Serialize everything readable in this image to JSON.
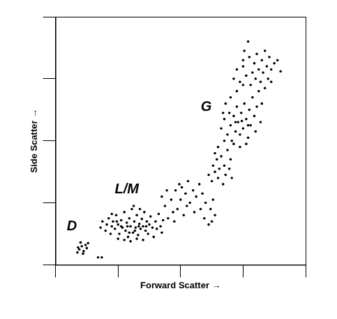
{
  "chart_data": {
    "type": "scatter",
    "x_label": "Forward Scatter →",
    "y_label": "Side Scatter →",
    "xlim": [
      0,
      4
    ],
    "xticks": [
      0,
      1,
      2,
      3,
      4
    ],
    "ylim": [
      0,
      4
    ],
    "yticks": [
      0,
      1,
      2,
      3,
      4
    ],
    "grid": false,
    "tick_labels": false,
    "color": "#000000",
    "marker": "circle",
    "annotations": [
      {
        "text": "D",
        "x": 0.26,
        "y": 0.62
      },
      {
        "text": "L/M",
        "x": 1.14,
        "y": 1.21
      },
      {
        "text": "G",
        "x": 2.41,
        "y": 2.54
      }
    ],
    "points": [
      [
        0.38,
        0.25
      ],
      [
        0.42,
        0.3
      ],
      [
        0.45,
        0.22
      ],
      [
        0.35,
        0.2
      ],
      [
        0.48,
        0.32
      ],
      [
        0.4,
        0.36
      ],
      [
        0.5,
        0.27
      ],
      [
        0.44,
        0.18
      ],
      [
        0.36,
        0.28
      ],
      [
        0.52,
        0.35
      ],
      [
        0.68,
        0.12
      ],
      [
        0.74,
        0.12
      ],
      [
        0.72,
        0.6
      ],
      [
        0.75,
        0.7
      ],
      [
        0.8,
        0.55
      ],
      [
        0.82,
        0.65
      ],
      [
        0.85,
        0.75
      ],
      [
        0.88,
        0.5
      ],
      [
        0.9,
        0.62
      ],
      [
        0.92,
        0.7
      ],
      [
        0.95,
        0.58
      ],
      [
        0.97,
        0.8
      ],
      [
        1.0,
        0.65
      ],
      [
        1.02,
        0.5
      ],
      [
        1.05,
        0.72
      ],
      [
        1.07,
        0.6
      ],
      [
        1.1,
        0.85
      ],
      [
        1.12,
        0.55
      ],
      [
        1.14,
        0.68
      ],
      [
        1.16,
        0.45
      ],
      [
        1.18,
        0.75
      ],
      [
        1.2,
        0.62
      ],
      [
        1.22,
        0.9
      ],
      [
        1.24,
        0.52
      ],
      [
        1.26,
        0.7
      ],
      [
        1.28,
        0.6
      ],
      [
        1.3,
        0.8
      ],
      [
        1.32,
        0.48
      ],
      [
        1.34,
        0.66
      ],
      [
        1.36,
        0.58
      ],
      [
        1.38,
        0.74
      ],
      [
        1.4,
        0.62
      ],
      [
        1.42,
        0.85
      ],
      [
        1.44,
        0.55
      ],
      [
        1.46,
        0.7
      ],
      [
        1.48,
        0.5
      ],
      [
        1.5,
        0.65
      ],
      [
        1.52,
        0.78
      ],
      [
        1.55,
        0.6
      ],
      [
        1.57,
        0.45
      ],
      [
        1.6,
        0.7
      ],
      [
        1.62,
        0.58
      ],
      [
        1.65,
        0.82
      ],
      [
        1.68,
        0.62
      ],
      [
        1.7,
        0.52
      ],
      [
        1.72,
        0.72
      ],
      [
        1.75,
        0.95
      ],
      [
        1.0,
        0.42
      ],
      [
        1.1,
        0.4
      ],
      [
        1.2,
        0.38
      ],
      [
        1.3,
        0.42
      ],
      [
        1.4,
        0.4
      ],
      [
        0.9,
        0.82
      ],
      [
        1.25,
        0.95
      ],
      [
        1.35,
        0.9
      ],
      [
        1.15,
        0.62
      ],
      [
        1.05,
        0.62
      ],
      [
        1.33,
        0.62
      ],
      [
        1.45,
        0.62
      ],
      [
        0.98,
        0.7
      ],
      [
        1.27,
        0.55
      ],
      [
        1.18,
        0.52
      ],
      [
        1.8,
        0.75
      ],
      [
        1.85,
        1.05
      ],
      [
        1.88,
        0.85
      ],
      [
        1.92,
        1.2
      ],
      [
        1.95,
        0.9
      ],
      [
        1.98,
        1.3
      ],
      [
        2.0,
        1.05
      ],
      [
        2.05,
        0.8
      ],
      [
        2.08,
        1.15
      ],
      [
        2.1,
        0.95
      ],
      [
        2.12,
        1.35
      ],
      [
        2.15,
        1.0
      ],
      [
        2.2,
        1.2
      ],
      [
        2.22,
        0.85
      ],
      [
        2.25,
        1.1
      ],
      [
        2.3,
        1.3
      ],
      [
        2.32,
        0.9
      ],
      [
        2.35,
        1.15
      ],
      [
        2.38,
        0.75
      ],
      [
        2.4,
        1.0
      ],
      [
        2.45,
        0.65
      ],
      [
        2.48,
        0.9
      ],
      [
        2.5,
        0.7
      ],
      [
        2.52,
        1.05
      ],
      [
        2.55,
        0.8
      ],
      [
        1.7,
        1.1
      ],
      [
        1.78,
        1.2
      ],
      [
        1.9,
        0.7
      ],
      [
        2.02,
        1.25
      ],
      [
        2.45,
        1.45
      ],
      [
        2.5,
        1.35
      ],
      [
        2.52,
        1.6
      ],
      [
        2.55,
        1.5
      ],
      [
        2.58,
        1.7
      ],
      [
        2.6,
        1.4
      ],
      [
        2.62,
        1.55
      ],
      [
        2.65,
        1.75
      ],
      [
        2.68,
        1.3
      ],
      [
        2.7,
        1.6
      ],
      [
        2.72,
        1.45
      ],
      [
        2.75,
        1.85
      ],
      [
        2.78,
        1.55
      ],
      [
        2.8,
        1.7
      ],
      [
        2.82,
        1.4
      ],
      [
        2.6,
        1.9
      ],
      [
        2.7,
        2.0
      ],
      [
        2.55,
        1.8
      ],
      [
        2.65,
        2.2
      ],
      [
        2.7,
        2.35
      ],
      [
        2.75,
        2.1
      ],
      [
        2.78,
        2.45
      ],
      [
        2.8,
        2.25
      ],
      [
        2.82,
        2.0
      ],
      [
        2.85,
        2.4
      ],
      [
        2.88,
        2.15
      ],
      [
        2.9,
        2.55
      ],
      [
        2.92,
        2.3
      ],
      [
        2.95,
        2.1
      ],
      [
        2.97,
        2.45
      ],
      [
        3.0,
        2.2
      ],
      [
        3.02,
        2.6
      ],
      [
        3.05,
        2.35
      ],
      [
        3.08,
        2.05
      ],
      [
        3.1,
        2.5
      ],
      [
        3.12,
        2.25
      ],
      [
        3.15,
        2.7
      ],
      [
        3.18,
        2.4
      ],
      [
        3.2,
        2.15
      ],
      [
        3.22,
        2.55
      ],
      [
        3.25,
        2.8
      ],
      [
        3.28,
        2.3
      ],
      [
        3.3,
        2.6
      ],
      [
        2.85,
        1.95
      ],
      [
        2.95,
        1.9
      ],
      [
        3.05,
        1.95
      ],
      [
        2.72,
        2.6
      ],
      [
        2.8,
        2.7
      ],
      [
        2.9,
        2.8
      ],
      [
        3.0,
        2.9
      ],
      [
        2.68,
        2.45
      ],
      [
        2.88,
        2.3
      ],
      [
        2.98,
        2.32
      ],
      [
        3.08,
        2.25
      ],
      [
        2.85,
        3.0
      ],
      [
        2.9,
        3.15
      ],
      [
        2.95,
        2.95
      ],
      [
        3.0,
        3.2
      ],
      [
        3.05,
        3.05
      ],
      [
        3.1,
        3.35
      ],
      [
        3.12,
        2.9
      ],
      [
        3.15,
        3.1
      ],
      [
        3.18,
        3.25
      ],
      [
        3.2,
        3.0
      ],
      [
        3.22,
        3.4
      ],
      [
        3.25,
        3.15
      ],
      [
        3.28,
        2.95
      ],
      [
        3.3,
        3.3
      ],
      [
        3.32,
        3.1
      ],
      [
        3.35,
        3.45
      ],
      [
        3.38,
        3.2
      ],
      [
        3.4,
        3.0
      ],
      [
        3.42,
        3.35
      ],
      [
        3.45,
        3.15
      ],
      [
        3.5,
        3.25
      ],
      [
        3.55,
        3.3
      ],
      [
        3.6,
        3.12
      ],
      [
        3.35,
        2.85
      ],
      [
        3.45,
        2.95
      ],
      [
        3.02,
        3.45
      ],
      [
        3.08,
        3.6
      ],
      [
        3.0,
        3.3
      ]
    ]
  }
}
